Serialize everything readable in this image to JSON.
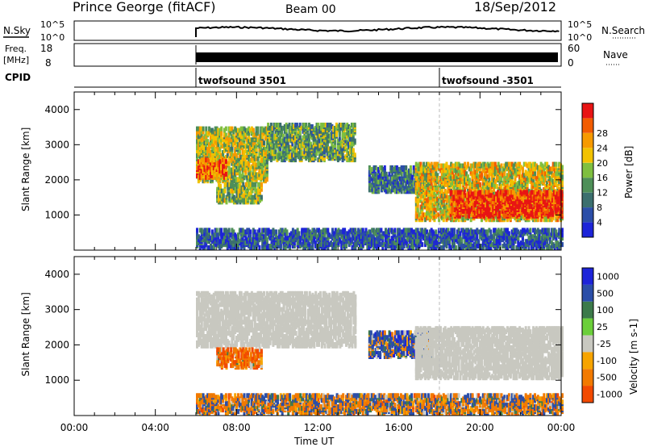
{
  "header": {
    "station": "Prince George (fitACF)",
    "beam": "Beam 00",
    "date": "18/Sep/2012"
  },
  "top_panels": {
    "nsky_label": "N.Sky",
    "nsky_ticks": [
      "10^5",
      "10^0"
    ],
    "nsearch_label": "N.Search",
    "nsearch_ticks": [
      "10^5",
      "10^0"
    ],
    "freq_label_1": "Freq.",
    "freq_label_2": "[MHz]",
    "freq_ticks": [
      "18",
      "8"
    ],
    "nave_label": "Nave",
    "nave_ticks": [
      "60",
      "0"
    ],
    "cpid_label": "CPID",
    "cpid_segments": [
      {
        "label": "twofsound 3501",
        "start_hour": 6.0
      },
      {
        "label": "twofsound -3501",
        "start_hour": 18.0
      }
    ]
  },
  "colors": {
    "power_scale": [
      "#1d24d8",
      "#2b4ea8",
      "#3b6f6e",
      "#4e8f58",
      "#7fbf3f",
      "#f2c200",
      "#f79a00",
      "#f25c00",
      "#e81414"
    ],
    "velocity_scale": [
      "#1d24d8",
      "#2b4ea8",
      "#3c7a4a",
      "#6bcf3a",
      "#c8c8c0",
      "#f7a400",
      "#f27a00",
      "#f24a00",
      "#e81414"
    ]
  },
  "chart_data": [
    {
      "type": "heatmap",
      "title": "Power",
      "xlabel": "Time UT",
      "ylabel": "Slant Range [km]",
      "xlim": [
        0,
        24
      ],
      "ylim": [
        0,
        4500
      ],
      "x_ticks": [
        "00:00",
        "04:00",
        "08:00",
        "12:00",
        "16:00",
        "20:00",
        "00:00"
      ],
      "x_tick_hours": [
        0,
        4,
        8,
        12,
        16,
        20,
        24
      ],
      "y_ticks": [
        1000,
        2000,
        3000,
        4000
      ],
      "colorbar": {
        "label": "Power [dB]",
        "ticks": [
          "4",
          "8",
          "12",
          "16",
          "20",
          "24",
          "28"
        ],
        "range": [
          0,
          30
        ]
      },
      "regions": [
        {
          "start_hour": 6.0,
          "end_hour": 9.5,
          "range_low": 1900,
          "range_high": 3400,
          "level": 16
        },
        {
          "start_hour": 6.0,
          "end_hour": 7.5,
          "range_low": 2000,
          "range_high": 2500,
          "level": 24
        },
        {
          "start_hour": 9.5,
          "end_hour": 13.8,
          "range_low": 2500,
          "range_high": 3500,
          "level": 12
        },
        {
          "start_hour": 7.0,
          "end_hour": 9.2,
          "range_low": 1300,
          "range_high": 1800,
          "level": 14
        },
        {
          "start_hour": 14.5,
          "end_hour": 17.5,
          "range_low": 1600,
          "range_high": 2300,
          "level": 8
        },
        {
          "start_hour": 16.8,
          "end_hour": 24.0,
          "range_low": 800,
          "range_high": 2400,
          "level": 18
        },
        {
          "start_hour": 18.5,
          "end_hour": 24.0,
          "range_low": 900,
          "range_high": 1600,
          "level": 28
        },
        {
          "start_hour": 6.0,
          "end_hour": 24.0,
          "range_low": 0,
          "range_high": 500,
          "level": 6
        }
      ]
    },
    {
      "type": "heatmap",
      "title": "Velocity",
      "xlabel": "Time UT",
      "ylabel": "Slant Range [km]",
      "xlim": [
        0,
        24
      ],
      "ylim": [
        0,
        4500
      ],
      "x_ticks": [
        "00:00",
        "04:00",
        "08:00",
        "12:00",
        "16:00",
        "20:00",
        "00:00"
      ],
      "x_tick_hours": [
        0,
        4,
        8,
        12,
        16,
        20,
        24
      ],
      "y_ticks": [
        1000,
        2000,
        3000,
        4000
      ],
      "colorbar": {
        "label": "Velocity [m s-1]",
        "ticks": [
          "1000",
          "500",
          "100",
          "25",
          "-25",
          "-100",
          "-500",
          "-1000"
        ],
        "range": [
          -1000,
          1000
        ]
      },
      "regions": [
        {
          "start_hour": 6.0,
          "end_hour": 13.8,
          "range_low": 1900,
          "range_high": 3400,
          "level": 0
        },
        {
          "start_hour": 7.0,
          "end_hour": 9.2,
          "range_low": 1300,
          "range_high": 1800,
          "level": -400
        },
        {
          "start_hour": 14.5,
          "end_hour": 17.5,
          "range_low": 1600,
          "range_high": 2300,
          "level": 200
        },
        {
          "start_hour": 16.8,
          "end_hour": 24.0,
          "range_low": 1000,
          "range_high": 2400,
          "level": 0
        },
        {
          "start_hour": 6.0,
          "end_hour": 24.0,
          "range_low": 0,
          "range_high": 500,
          "level": -80
        }
      ]
    }
  ]
}
